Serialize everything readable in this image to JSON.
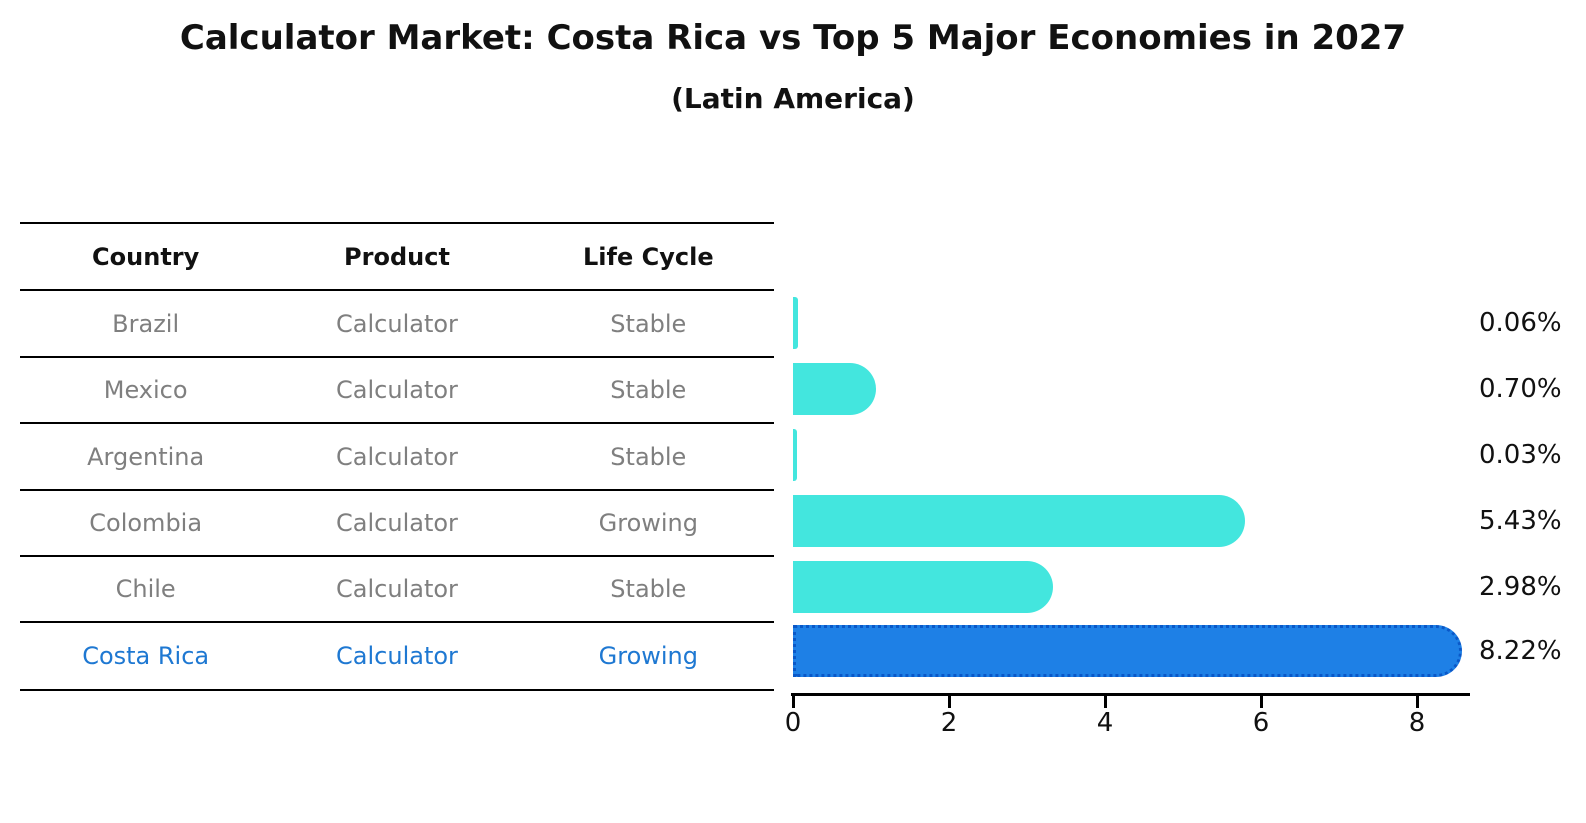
{
  "title": "Calculator Market: Costa Rica vs Top 5 Major Economies in 2027",
  "subtitle": "(Latin America)",
  "table": {
    "headers": [
      "Country",
      "Product",
      "Life Cycle"
    ],
    "rows": [
      {
        "country": "Brazil",
        "product": "Calculator",
        "life_cycle": "Stable",
        "share_label": "0.06%"
      },
      {
        "country": "Mexico",
        "product": "Calculator",
        "life_cycle": "Stable",
        "share_label": "0.70%"
      },
      {
        "country": "Argentina",
        "product": "Calculator",
        "life_cycle": "Stable",
        "share_label": "0.03%"
      },
      {
        "country": "Colombia",
        "product": "Calculator",
        "life_cycle": "Growing",
        "share_label": "5.43%"
      },
      {
        "country": "Chile",
        "product": "Calculator",
        "life_cycle": "Stable",
        "share_label": "2.98%"
      },
      {
        "country": "Costa Rica",
        "product": "Calculator",
        "life_cycle": "Growing",
        "share_label": "8.22%"
      }
    ]
  },
  "chart_data": {
    "type": "bar",
    "orientation": "horizontal",
    "title": "Calculator Market: Costa Rica vs Top 5 Major Economies in 2027",
    "subtitle": "(Latin America)",
    "categories": [
      "Brazil",
      "Mexico",
      "Argentina",
      "Colombia",
      "Chile",
      "Costa Rica"
    ],
    "values": [
      0.06,
      0.7,
      0.03,
      5.43,
      2.98,
      8.22
    ],
    "value_labels": [
      "0.06%",
      "0.70%",
      "0.03%",
      "5.43%",
      "2.98%",
      "8.22%"
    ],
    "xlabel": "",
    "ylabel": "",
    "x_ticks": [
      "0",
      "2",
      "4",
      "6",
      "8"
    ],
    "xlim": [
      0,
      8.7
    ],
    "grid": false,
    "legend": "none",
    "highlight_category": "Costa Rica",
    "colors": {
      "bar_default": "#43E6DE",
      "bar_highlight": "#1E80E6",
      "bar_highlight_edge": "#0A58C8",
      "highlight_text": "#1E78D2",
      "cell_text": "#7f7f7f",
      "header_text": "#111111",
      "axis_text": "#111111"
    }
  }
}
